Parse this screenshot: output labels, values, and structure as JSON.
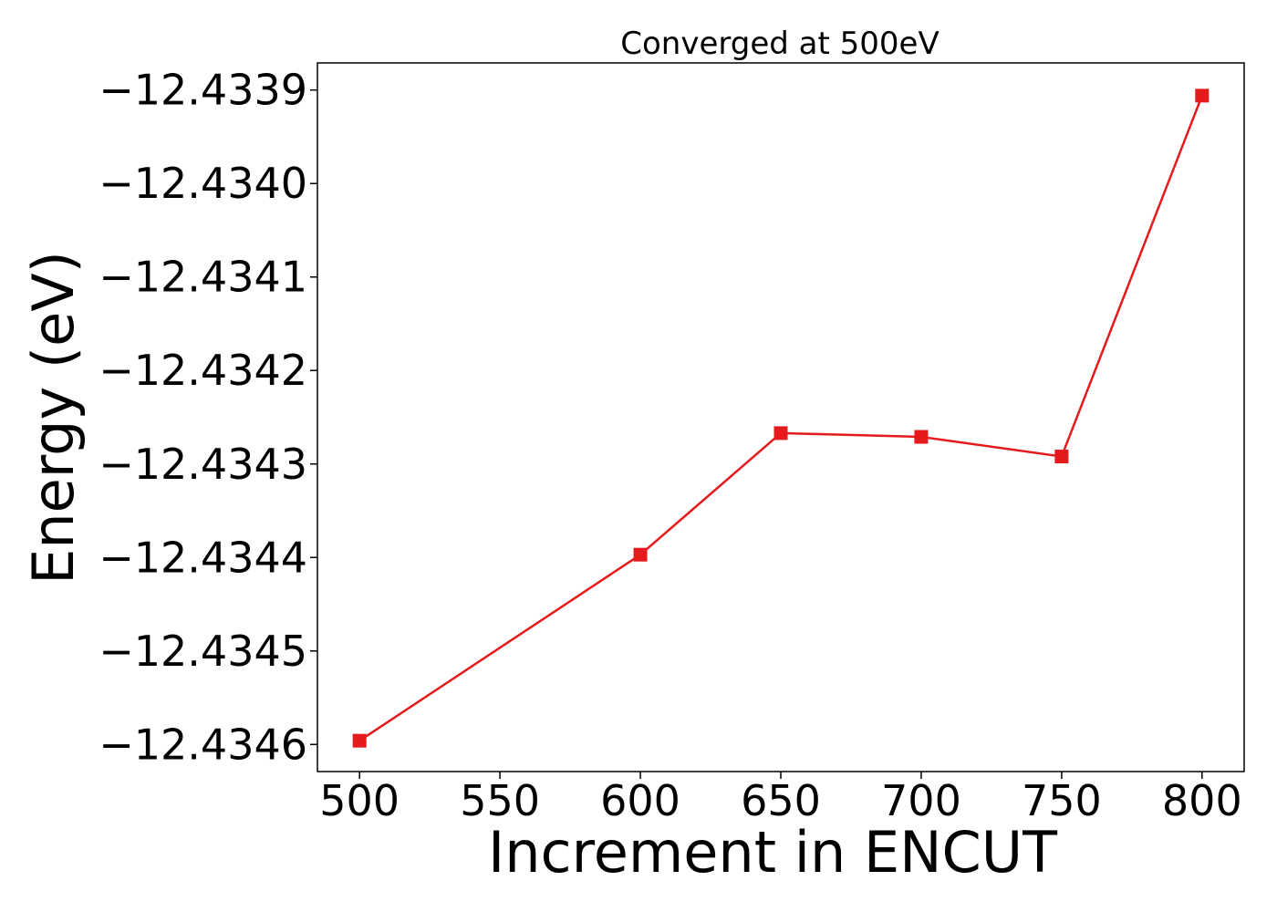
{
  "chart_data": {
    "type": "line",
    "title": "Converged at 500eV",
    "xlabel": "Increment in ENCUT",
    "ylabel": "Energy (eV)",
    "x": [
      500,
      600,
      650,
      700,
      750,
      800
    ],
    "series": [
      {
        "values": [
          -12.434596,
          -12.434397,
          -12.434267,
          -12.434271,
          -12.434292,
          -12.433906
        ],
        "color": "#e41a1c",
        "marker": "square"
      }
    ],
    "xlim": [
      485,
      815
    ],
    "ylim": [
      -12.434629,
      -12.433871
    ],
    "xticks": [
      500,
      550,
      600,
      650,
      700,
      750,
      800
    ],
    "xtick_labels": [
      "500",
      "550",
      "600",
      "650",
      "700",
      "750",
      "800"
    ],
    "yticks": [
      -12.4346,
      -12.4345,
      -12.4344,
      -12.4343,
      -12.4342,
      -12.4341,
      -12.434,
      -12.4339
    ],
    "ytick_labels": [
      "−12.4346",
      "−12.4345",
      "−12.4344",
      "−12.4343",
      "−12.4342",
      "−12.4341",
      "−12.4340",
      "−12.4339"
    ],
    "grid": false,
    "legend": "none"
  }
}
